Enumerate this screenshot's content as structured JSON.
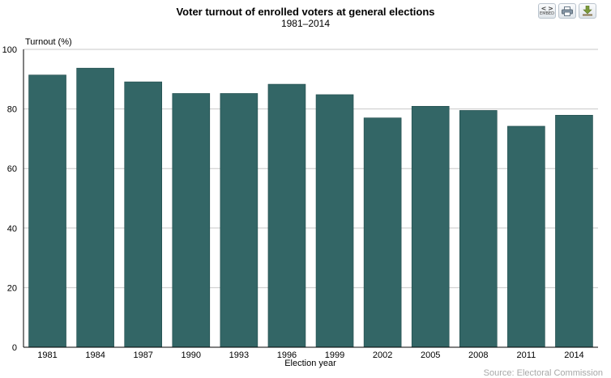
{
  "header": {
    "title": "Voter turnout of enrolled voters at general elections",
    "subtitle": "1981–2014"
  },
  "toolbar": {
    "embed_label": "EMBED",
    "embed_glyph": "< >",
    "embed_icon": "embed-icon",
    "print_icon": "print-icon",
    "download_icon": "download-icon"
  },
  "source": "Source: Electoral Commission",
  "colors": {
    "bar": "#336666",
    "grid": "#c8c8c8",
    "axis": "#000000",
    "source_text": "#a8a8a8"
  },
  "chart_data": {
    "type": "bar",
    "title": "Voter turnout of enrolled voters at general elections",
    "subtitle": "1981–2014",
    "xlabel": "Election year",
    "ylabel": "Turnout (%)",
    "categories": [
      "1981",
      "1984",
      "1987",
      "1990",
      "1993",
      "1996",
      "1999",
      "2002",
      "2005",
      "2008",
      "2011",
      "2014"
    ],
    "values": [
      91.4,
      93.7,
      89.1,
      85.2,
      85.2,
      88.3,
      84.8,
      77.0,
      80.9,
      79.5,
      74.2,
      77.9
    ],
    "ylim": [
      0,
      100
    ],
    "yticks": [
      0,
      20,
      40,
      60,
      80,
      100
    ],
    "grid": true,
    "legend": "none"
  }
}
